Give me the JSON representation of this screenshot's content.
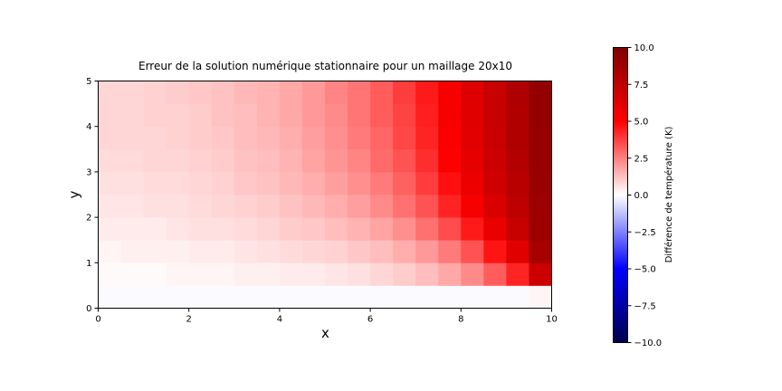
{
  "chart_data": {
    "type": "heatmap",
    "title": "Erreur de la solution numérique stationnaire pour un maillage 20x10",
    "xlabel": "x",
    "ylabel": "y",
    "xlim": [
      0,
      10
    ],
    "ylim": [
      0,
      5
    ],
    "x_ticks": [
      "0",
      "2",
      "4",
      "6",
      "8",
      "10"
    ],
    "y_ticks": [
      "0",
      "1",
      "2",
      "3",
      "4",
      "5"
    ],
    "colorbar": {
      "label": "Différence de température (K)",
      "range": [
        -10,
        10
      ],
      "ticks": [
        "−10.0",
        "−7.5",
        "−5.0",
        "−2.5",
        "0.0",
        "2.5",
        "5.0",
        "7.5",
        "10.0"
      ],
      "colormap": "seismic"
    },
    "grid_shape": [
      10,
      20
    ],
    "z_rows_bottom_to_top": [
      [
        -0.1,
        -0.1,
        -0.1,
        -0.1,
        -0.1,
        -0.1,
        -0.1,
        -0.1,
        -0.1,
        -0.1,
        -0.1,
        -0.1,
        -0.1,
        -0.1,
        -0.1,
        -0.1,
        -0.1,
        -0.1,
        -0.1,
        0.2
      ],
      [
        0.1,
        0.1,
        0.1,
        0.2,
        0.2,
        0.2,
        0.3,
        0.3,
        0.4,
        0.4,
        0.5,
        0.6,
        0.8,
        1.0,
        1.3,
        1.7,
        2.3,
        3.2,
        4.3,
        7.0
      ],
      [
        0.2,
        0.3,
        0.3,
        0.3,
        0.4,
        0.4,
        0.5,
        0.6,
        0.7,
        0.8,
        0.9,
        1.1,
        1.3,
        1.6,
        2.0,
        2.6,
        3.4,
        4.6,
        6.2,
        8.5
      ],
      [
        0.4,
        0.4,
        0.4,
        0.5,
        0.6,
        0.6,
        0.7,
        0.8,
        1.0,
        1.1,
        1.3,
        1.5,
        1.8,
        2.2,
        2.8,
        3.5,
        4.5,
        5.8,
        7.2,
        8.8
      ],
      [
        0.5,
        0.5,
        0.6,
        0.6,
        0.7,
        0.8,
        0.9,
        1.0,
        1.2,
        1.4,
        1.6,
        1.9,
        2.3,
        2.8,
        3.4,
        4.3,
        5.3,
        6.5,
        7.6,
        8.9
      ],
      [
        0.6,
        0.6,
        0.7,
        0.7,
        0.8,
        0.9,
        1.1,
        1.2,
        1.4,
        1.6,
        1.9,
        2.2,
        2.6,
        3.1,
        3.8,
        4.7,
        5.7,
        6.8,
        7.8,
        9.0
      ],
      [
        0.7,
        0.7,
        0.8,
        0.8,
        0.9,
        1.0,
        1.2,
        1.3,
        1.5,
        1.8,
        2.1,
        2.4,
        2.9,
        3.4,
        4.1,
        5.0,
        6.0,
        7.0,
        8.0,
        9.1
      ],
      [
        0.8,
        0.8,
        0.8,
        0.9,
        1.0,
        1.1,
        1.3,
        1.4,
        1.6,
        1.9,
        2.2,
        2.6,
        3.0,
        3.6,
        4.3,
        5.2,
        6.1,
        7.1,
        8.1,
        9.1
      ],
      [
        0.8,
        0.8,
        0.9,
        0.9,
        1.0,
        1.2,
        1.3,
        1.5,
        1.7,
        2.0,
        2.3,
        2.7,
        3.2,
        3.7,
        4.4,
        5.3,
        6.2,
        7.2,
        8.1,
        9.2
      ],
      [
        0.8,
        0.8,
        0.9,
        1.0,
        1.1,
        1.2,
        1.4,
        1.5,
        1.7,
        2.0,
        2.4,
        2.7,
        3.2,
        3.8,
        4.5,
        5.3,
        6.3,
        7.2,
        8.2,
        9.2
      ]
    ]
  }
}
